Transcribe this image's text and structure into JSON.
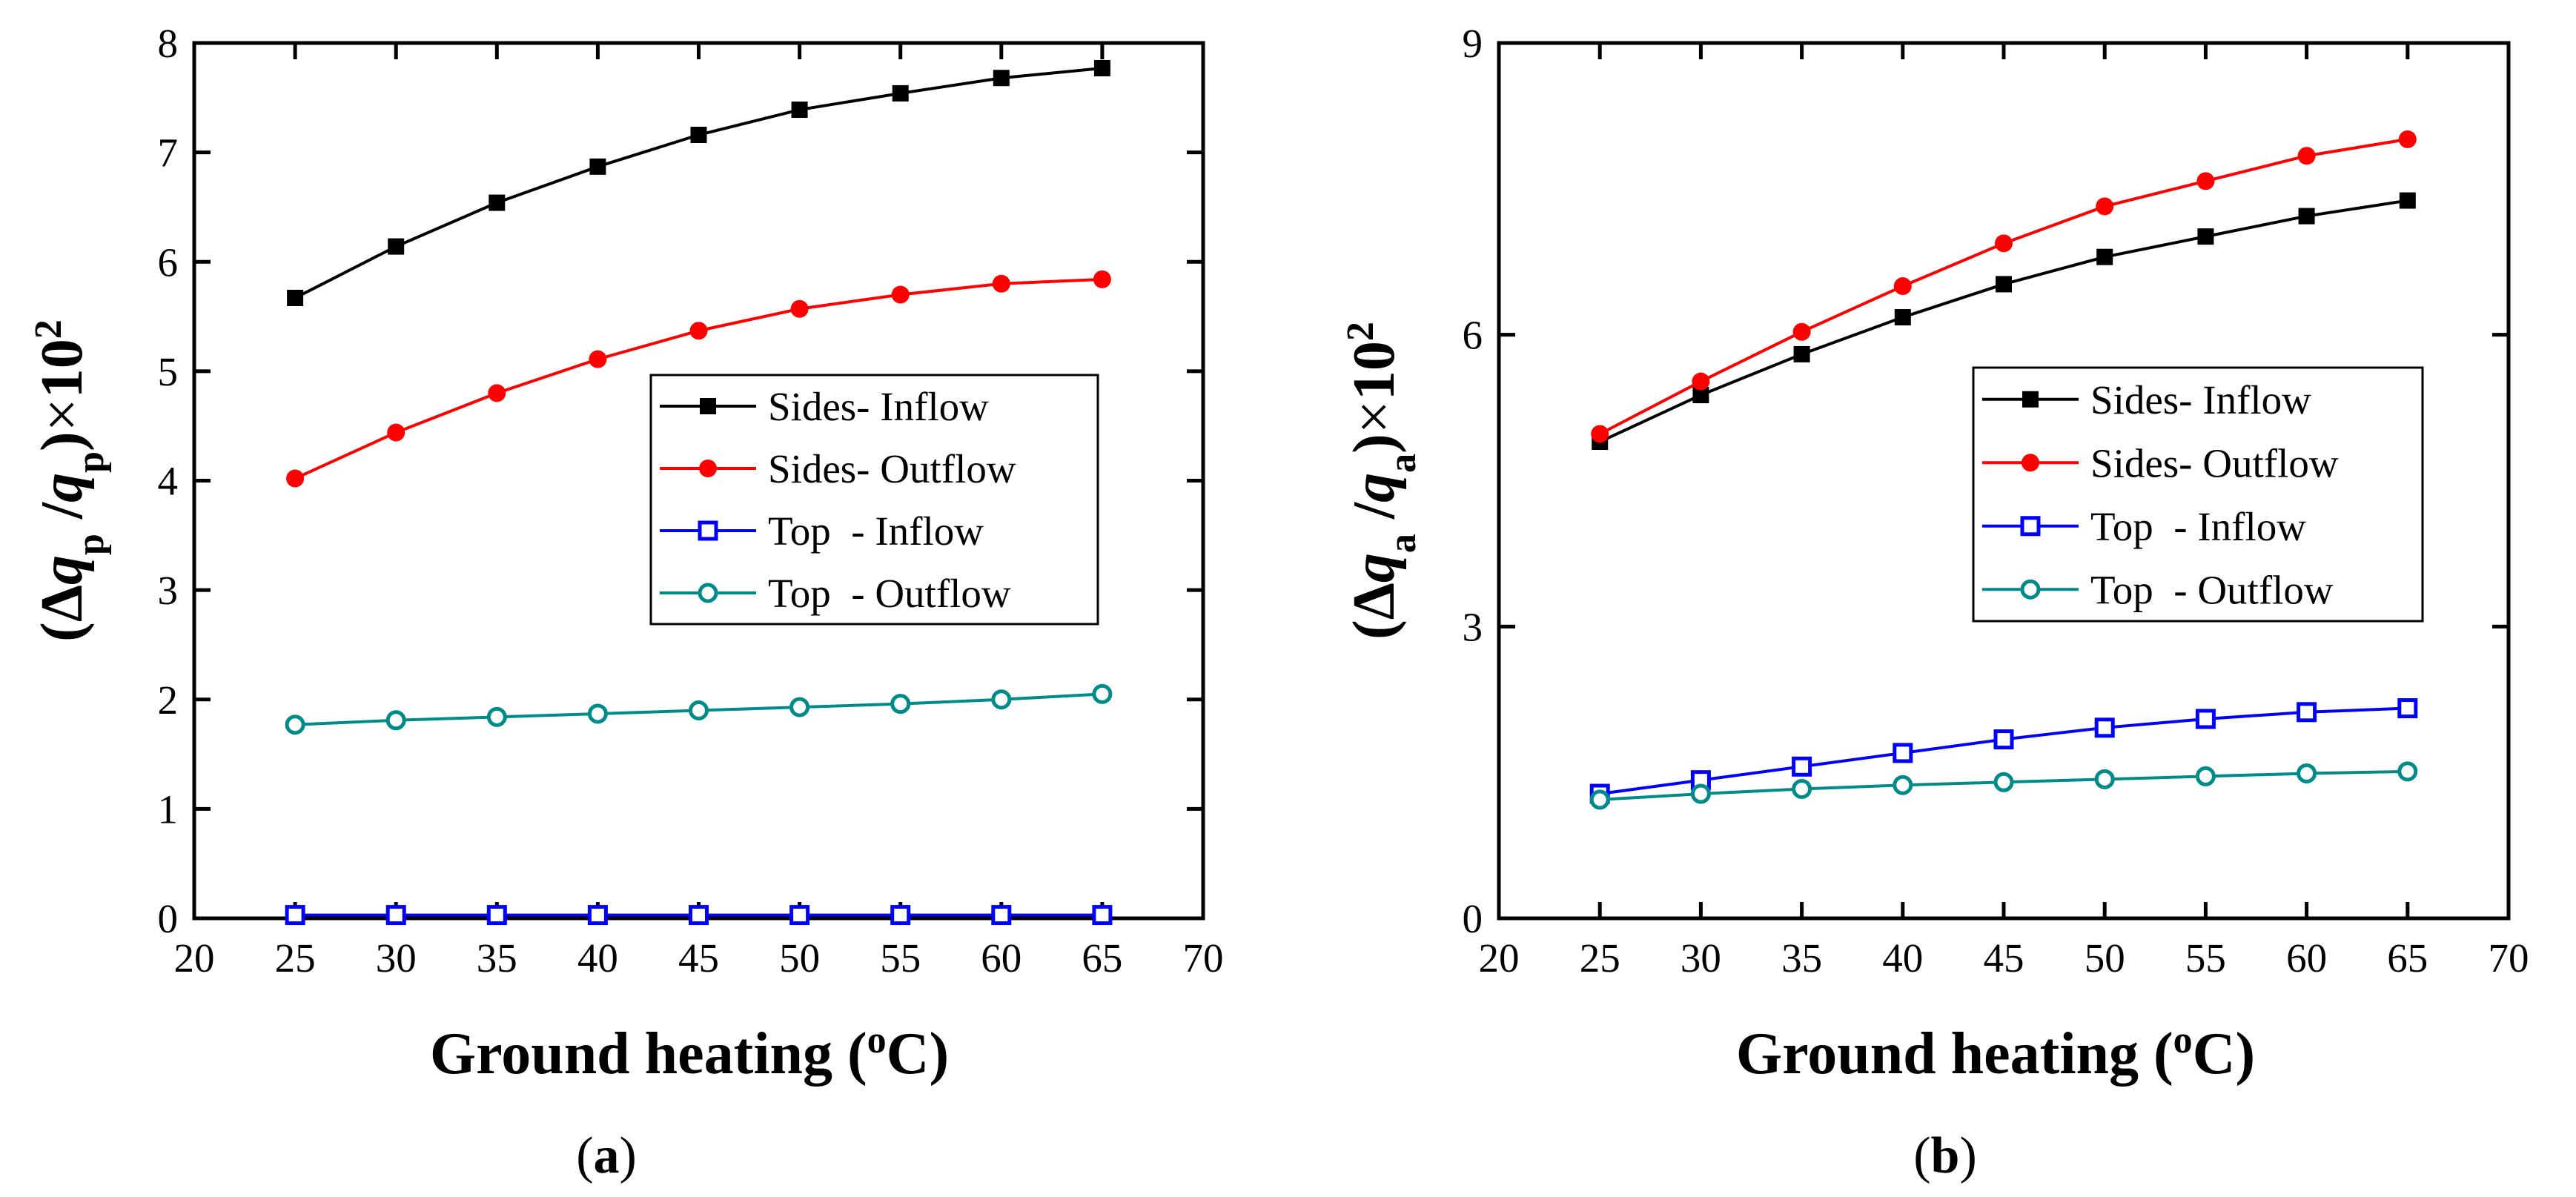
{
  "chart_data": [
    {
      "type": "line",
      "panel_label": "a",
      "xlabel": "Ground heating (",
      "xlabel_unit": "C)",
      "xlabel_sup": "o",
      "ylabel": {
        "prefix": "(Δ",
        "var": "q",
        "sub": "p",
        "sep": " /",
        "suffix": ")",
        "times": "×",
        "base": "10",
        "exp": "2"
      },
      "xlim": [
        20,
        70
      ],
      "ylim": [
        0,
        8
      ],
      "xticks": [
        "20",
        "25",
        "30",
        "35",
        "40",
        "45",
        "50",
        "55",
        "60",
        "65",
        "70"
      ],
      "yticks": [
        "0",
        "1",
        "2",
        "3",
        "4",
        "5",
        "6",
        "7",
        "8"
      ],
      "legend_position": "center-right",
      "x": [
        25,
        30,
        35,
        40,
        45,
        50,
        55,
        60,
        65
      ],
      "series": [
        {
          "name": "Sides- Inflow",
          "color": "#000000",
          "marker": "square-filled",
          "values": [
            5.67,
            6.14,
            6.54,
            6.87,
            7.16,
            7.39,
            7.54,
            7.68,
            7.77
          ]
        },
        {
          "name": "Sides- Outflow",
          "color": "#ff0000",
          "marker": "circle-filled",
          "values": [
            4.02,
            4.44,
            4.8,
            5.11,
            5.37,
            5.57,
            5.7,
            5.8,
            5.84
          ]
        },
        {
          "name": "Top  - Inflow",
          "color": "#0000ff",
          "marker": "square-open",
          "values": [
            0.03,
            0.03,
            0.03,
            0.03,
            0.03,
            0.03,
            0.03,
            0.03,
            0.03
          ]
        },
        {
          "name": "Top  - Outflow",
          "color": "#008b8b",
          "marker": "circle-open",
          "values": [
            1.77,
            1.81,
            1.84,
            1.87,
            1.9,
            1.93,
            1.96,
            2.0,
            2.05
          ]
        }
      ]
    },
    {
      "type": "line",
      "panel_label": "b",
      "xlabel": "Ground heating (",
      "xlabel_unit": "C)",
      "xlabel_sup": "o",
      "ylabel": {
        "prefix": "(Δ",
        "var": "q",
        "sub": "a",
        "sep": " /",
        "suffix": ")",
        "times": "×",
        "base": "10",
        "exp": "2"
      },
      "xlim": [
        20,
        70
      ],
      "ylim": [
        0,
        9
      ],
      "xticks": [
        "20",
        "25",
        "30",
        "35",
        "40",
        "45",
        "50",
        "55",
        "60",
        "65",
        "70"
      ],
      "yticks": [
        "0",
        "3",
        "6",
        "9"
      ],
      "legend_position": "center-right",
      "x": [
        25,
        30,
        35,
        40,
        45,
        50,
        55,
        60,
        65
      ],
      "series": [
        {
          "name": "Sides- Inflow",
          "color": "#000000",
          "marker": "square-filled",
          "values": [
            4.9,
            5.38,
            5.8,
            6.18,
            6.52,
            6.8,
            7.01,
            7.22,
            7.38
          ]
        },
        {
          "name": "Sides- Outflow",
          "color": "#ff0000",
          "marker": "circle-filled",
          "values": [
            4.98,
            5.52,
            6.03,
            6.5,
            6.94,
            7.32,
            7.58,
            7.84,
            8.01
          ]
        },
        {
          "name": "Top  - Inflow",
          "color": "#0000ff",
          "marker": "square-open",
          "values": [
            1.28,
            1.42,
            1.56,
            1.7,
            1.84,
            1.96,
            2.05,
            2.12,
            2.16
          ]
        },
        {
          "name": "Top  - Outflow",
          "color": "#008b8b",
          "marker": "circle-open",
          "values": [
            1.22,
            1.28,
            1.33,
            1.37,
            1.4,
            1.43,
            1.46,
            1.49,
            1.51
          ]
        }
      ]
    }
  ]
}
